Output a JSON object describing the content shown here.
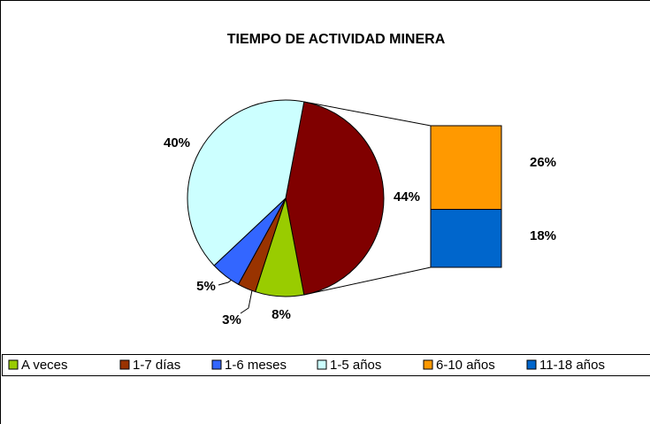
{
  "chart_data": {
    "type": "bar-of-pie",
    "title": "TIEMPO DE ACTIVIDAD MINERA",
    "pie_slices": [
      {
        "name": "A veces",
        "color": "#99cc00",
        "value": 8,
        "label": "8%"
      },
      {
        "name": "1-7 días",
        "color": "#993300",
        "value": 3,
        "label": "3%"
      },
      {
        "name": "1-6 meses",
        "color": "#3366ff",
        "value": 5,
        "label": "5%"
      },
      {
        "name": "1-5 años",
        "color": "#ccffff",
        "value": 40,
        "label": "40%"
      }
    ],
    "other": {
      "value": 44,
      "label": "44%",
      "color": "#800000"
    },
    "bar_segments": [
      {
        "name": "6-10 años",
        "color": "#ff9900",
        "value": 26,
        "label": "26%"
      },
      {
        "name": "11-18 años",
        "color": "#0066cc",
        "value": 18,
        "label": "18%"
      }
    ]
  }
}
